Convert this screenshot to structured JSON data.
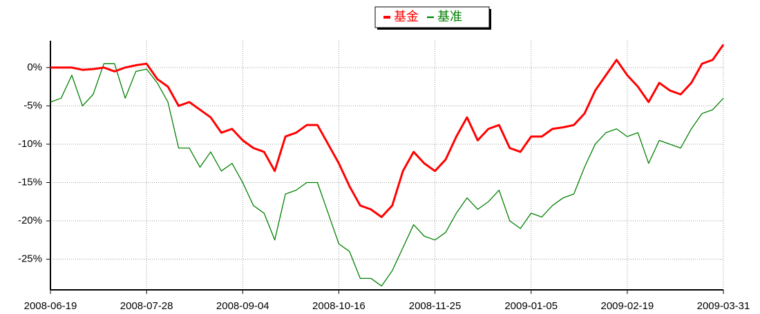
{
  "chart_data": {
    "type": "line",
    "x": [
      0,
      3,
      6,
      9,
      12,
      15,
      18,
      21,
      24,
      27,
      30,
      33,
      36,
      39,
      42,
      45,
      48,
      51,
      54,
      57,
      60,
      63,
      66,
      69,
      72,
      75,
      78,
      81,
      84,
      87,
      90,
      93,
      96,
      99,
      102,
      105,
      108,
      111,
      114,
      117,
      120,
      123,
      126,
      129,
      132,
      135,
      138,
      141,
      144,
      147,
      150,
      153,
      156,
      159,
      162,
      165,
      168,
      171,
      174,
      177,
      180,
      183,
      186,
      189
    ],
    "series": [
      {
        "name": "基金",
        "color": "#ff0000",
        "width": 3,
        "values": [
          0,
          0,
          0,
          -0.3,
          -0.2,
          0,
          -0.5,
          0,
          0.3,
          0.5,
          -1.5,
          -2.5,
          -5,
          -4.5,
          -5.5,
          -6.5,
          -8.5,
          -8,
          -9.5,
          -10.5,
          -11,
          -13.5,
          -9,
          -8.5,
          -7.5,
          -7.5,
          -10,
          -12.5,
          -15.5,
          -18,
          -18.5,
          -19.5,
          -18,
          -13.5,
          -11,
          -12.5,
          -13.5,
          -12,
          -9,
          -6.5,
          -9.5,
          -8,
          -7.5,
          -10.5,
          -11,
          -9,
          -9,
          -8,
          -7.8,
          -7.5,
          -6,
          -3,
          -1,
          1,
          -1,
          -2.5,
          -4.5,
          -2,
          -3,
          -3.5,
          -2,
          0.5,
          1,
          3
        ]
      },
      {
        "name": "基准",
        "color": "#008000",
        "width": 1.3,
        "values": [
          -4.5,
          -4,
          -1,
          -5,
          -3.5,
          0.5,
          0.5,
          -4,
          -0.5,
          -0.2,
          -2,
          -4.5,
          -10.5,
          -10.5,
          -13,
          -11,
          -13.5,
          -12.5,
          -15,
          -18,
          -19,
          -22.5,
          -16.5,
          -16,
          -15,
          -15,
          -19,
          -23,
          -24,
          -27.5,
          -27.5,
          -28.5,
          -26.5,
          -23.5,
          -20.5,
          -22,
          -22.5,
          -21.5,
          -19,
          -17,
          -18.5,
          -17.5,
          -16,
          -20,
          -21,
          -19,
          -19.5,
          -18,
          -17,
          -16.5,
          -13,
          -10,
          -8.5,
          -8,
          -9,
          -8.5,
          -12.5,
          -9.5,
          -10,
          -10.5,
          -8,
          -6,
          -5.5,
          -4
        ]
      }
    ],
    "xlim": [
      0,
      189
    ],
    "xticks": [
      {
        "value": 0,
        "label": "2008-06-19"
      },
      {
        "value": 27,
        "label": "2008-07-28"
      },
      {
        "value": 54,
        "label": "2008-09-04"
      },
      {
        "value": 81,
        "label": "2008-10-16"
      },
      {
        "value": 108,
        "label": "2008-11-25"
      },
      {
        "value": 135,
        "label": "2009-01-05"
      },
      {
        "value": 162,
        "label": "2009-02-19"
      },
      {
        "value": 189,
        "label": "2009-03-31"
      }
    ],
    "ylim": [
      -29,
      3.5
    ],
    "yticks": [
      {
        "value": 0,
        "label": "0%"
      },
      {
        "value": -5,
        "label": "-5%"
      },
      {
        "value": -10,
        "label": "-10%"
      },
      {
        "value": -15,
        "label": "-15%"
      },
      {
        "value": -20,
        "label": "-20%"
      },
      {
        "value": -25,
        "label": "-25%"
      }
    ],
    "grid": true,
    "legend": "top"
  }
}
